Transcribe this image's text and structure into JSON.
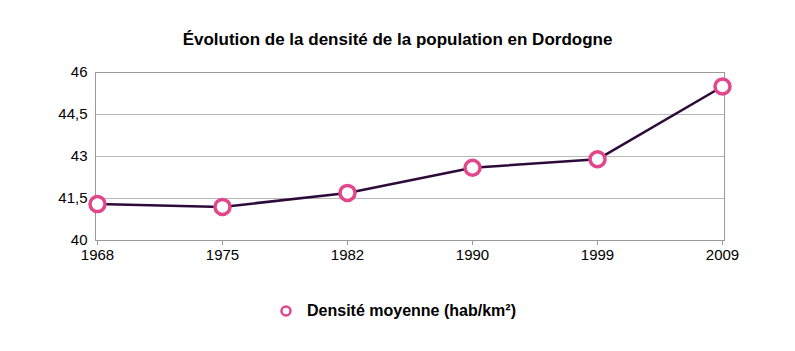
{
  "chart_data": {
    "type": "line",
    "title": "Évolution de la densité de la population en Dordogne",
    "categories": [
      "1968",
      "1975",
      "1982",
      "1990",
      "1999",
      "2009"
    ],
    "series": [
      {
        "name": "Densité moyenne (hab/km²)",
        "color": "#e2478b",
        "marker": "circle",
        "values": [
          41.3,
          41.2,
          41.7,
          42.6,
          42.9,
          45.5
        ]
      }
    ],
    "ylim": [
      40,
      46
    ],
    "yticks": [
      40,
      {
        "value": 41.5,
        "label": "41,5"
      },
      43,
      {
        "value": 44.5,
        "label": "44,5"
      },
      46
    ],
    "grid": true
  }
}
